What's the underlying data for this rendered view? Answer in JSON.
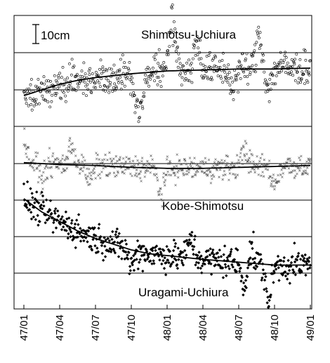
{
  "chart_data": {
    "type": "scatter",
    "title": "",
    "xlabel": "",
    "ylabel": "",
    "scale_bar_label": "10cm",
    "grid": "horizontal lines",
    "x_ticks": [
      "47/01",
      "47/04",
      "47/07",
      "47/10",
      "48/01",
      "48/04",
      "48/07",
      "48/10",
      "49/01"
    ],
    "x_tick_months": [
      0,
      3,
      6,
      9,
      12,
      15,
      18,
      21,
      24
    ],
    "x_range_months": [
      0,
      24
    ],
    "y_unit": "cm",
    "series": [
      {
        "name": "Shimotsu-Uchiura",
        "marker": "open-circle",
        "baseline_cm": 0,
        "trend": [
          [
            0,
            -3
          ],
          [
            1.5,
            0
          ],
          [
            3,
            3
          ],
          [
            4.5,
            5
          ],
          [
            6,
            6.5
          ],
          [
            7.5,
            7.5
          ],
          [
            9,
            8.5
          ],
          [
            12,
            10
          ],
          [
            15,
            10.5
          ],
          [
            18,
            11
          ],
          [
            21,
            11
          ],
          [
            24,
            11.5
          ]
        ],
        "anomalies": [
          [
            9.3,
            -6
          ],
          [
            9.6,
            -12
          ],
          [
            9.9,
            -9
          ],
          [
            12.3,
            16
          ],
          [
            12.6,
            12
          ],
          [
            14.5,
            15
          ],
          [
            17.5,
            -9
          ],
          [
            19.7,
            18
          ],
          [
            20.5,
            -10
          ],
          [
            21.5,
            2
          ]
        ]
      },
      {
        "name": "Kobe-Shimotsu",
        "marker": "cross",
        "baseline_cm": 0,
        "trend": [
          [
            0,
            0.5
          ],
          [
            3,
            -0.5
          ],
          [
            6,
            -1
          ],
          [
            9,
            -2
          ],
          [
            12,
            -2.5
          ],
          [
            15,
            -2.5
          ],
          [
            18,
            -2
          ],
          [
            21,
            -1.5
          ],
          [
            24,
            -1
          ]
        ],
        "anomalies": [
          [
            0,
            12
          ],
          [
            1.5,
            -8
          ],
          [
            4,
            10
          ],
          [
            5.5,
            -8
          ],
          [
            11.5,
            -14
          ],
          [
            18.5,
            10
          ],
          [
            21,
            -10
          ]
        ]
      },
      {
        "name": "Uragami-Uchiura",
        "marker": "filled-diamond",
        "baseline_cm": 0,
        "trend": [
          [
            0,
            30
          ],
          [
            1.5,
            23
          ],
          [
            3,
            18
          ],
          [
            4.5,
            13
          ],
          [
            6,
            9
          ],
          [
            7.5,
            6
          ],
          [
            9,
            3
          ],
          [
            10.5,
            1
          ],
          [
            12,
            0
          ],
          [
            15,
            -2
          ],
          [
            18,
            -3.5
          ],
          [
            21,
            -5
          ],
          [
            24,
            -5
          ]
        ],
        "anomalies": [
          [
            9,
            -8
          ],
          [
            14,
            10
          ],
          [
            18.5,
            -12
          ],
          [
            19,
            8
          ],
          [
            20.5,
            -18
          ]
        ]
      }
    ]
  }
}
